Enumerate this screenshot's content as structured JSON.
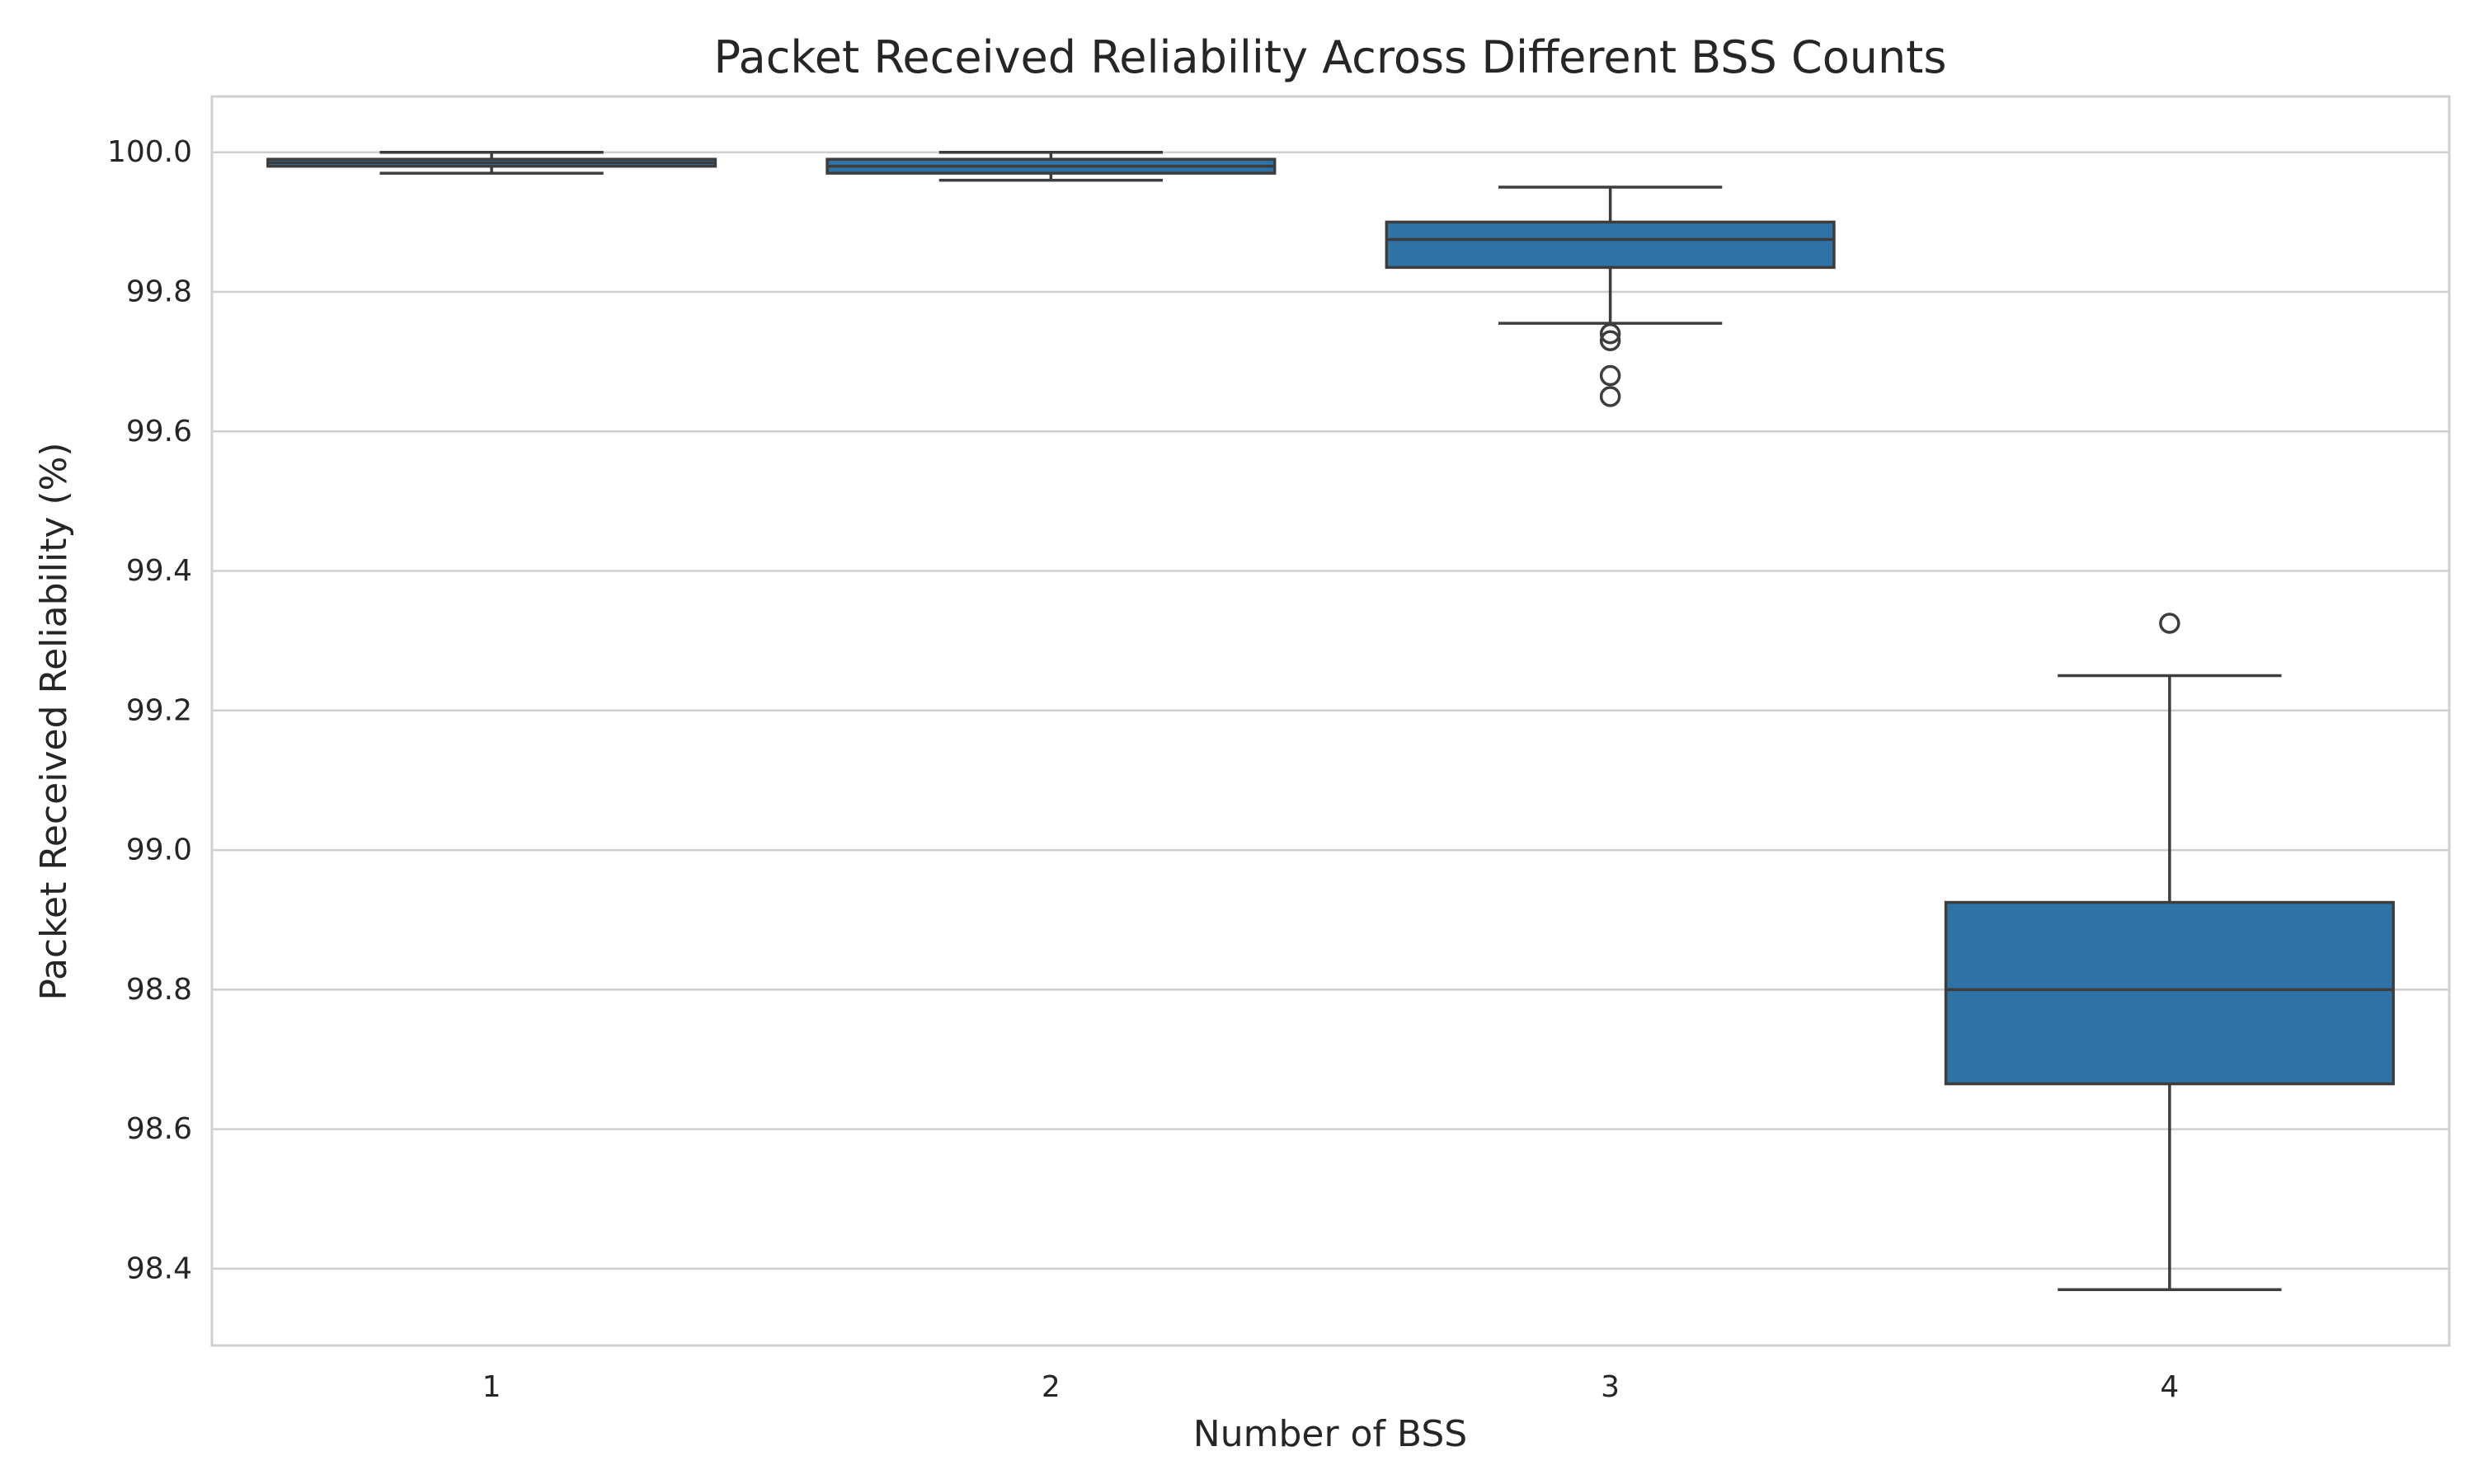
{
  "chart_data": {
    "type": "box",
    "title": "Packet Received Reliability Across Different BSS Counts",
    "xlabel": "Number of BSS",
    "ylabel": "Packet Received Reliability (%)",
    "ylim": [
      98.29,
      100.08
    ],
    "yticks": [
      "98.4",
      "98.6",
      "98.8",
      "99.0",
      "99.2",
      "99.4",
      "99.6",
      "99.8",
      "100.0"
    ],
    "grid": true,
    "colors": {
      "box_fill": "#2f73a6",
      "box_edge": "#3d3d3d",
      "grid": "#cfcfcf",
      "frame": "#d0d0d0"
    },
    "categories": [
      "1",
      "2",
      "3",
      "4"
    ],
    "boxes": [
      {
        "category": "1",
        "whisker_low": 99.97,
        "q1": 99.98,
        "median": 99.985,
        "q3": 99.99,
        "whisker_high": 100.0,
        "outliers": []
      },
      {
        "category": "2",
        "whisker_low": 99.96,
        "q1": 99.97,
        "median": 99.98,
        "q3": 99.99,
        "whisker_high": 100.0,
        "outliers": []
      },
      {
        "category": "3",
        "whisker_low": 99.755,
        "q1": 99.835,
        "median": 99.875,
        "q3": 99.9,
        "whisker_high": 99.95,
        "outliers": [
          99.74,
          99.73,
          99.68,
          99.65
        ]
      },
      {
        "category": "4",
        "whisker_low": 98.37,
        "q1": 98.665,
        "median": 98.8,
        "q3": 98.925,
        "whisker_high": 99.25,
        "outliers": [
          99.325
        ]
      }
    ]
  }
}
